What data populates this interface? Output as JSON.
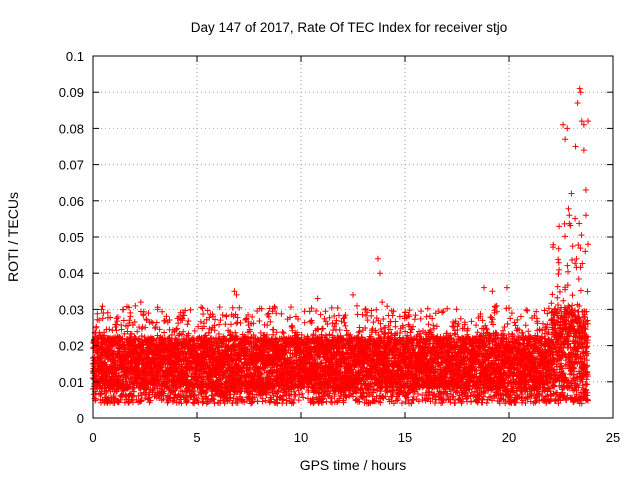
{
  "chart_data": {
    "type": "scatter",
    "title": "Day 147 of 2017, Rate Of TEC Index for receiver stjo",
    "xlabel": "GPS time / hours",
    "ylabel": "ROTI / TECUs",
    "xlim": [
      0,
      25
    ],
    "ylim": [
      0,
      0.1
    ],
    "x_ticks": [
      "0",
      "5",
      "10",
      "15",
      "20",
      "25"
    ],
    "y_ticks": [
      "0",
      "0.01",
      "0.02",
      "0.03",
      "0.04",
      "0.05",
      "0.06",
      "0.07",
      "0.08",
      "0.09",
      "0.1"
    ],
    "grid": true,
    "marker": "+",
    "marker_color": "#ff0000",
    "sampling_interval_hours": 0.0083,
    "x_extent": [
      0.0,
      23.8
    ],
    "series": [
      {
        "name": "ROTI",
        "envelope": [
          {
            "x_start": 0.0,
            "x_end": 22.0,
            "y_min": 0.004,
            "y_typical_low": 0.008,
            "y_typical_high": 0.022,
            "y_max": 0.031
          },
          {
            "x_start": 22.0,
            "x_end": 23.8,
            "y_min": 0.004,
            "y_typical_low": 0.008,
            "y_typical_high": 0.03,
            "y_max": 0.06
          }
        ],
        "notable_points": [
          {
            "x": 2.3,
            "y": 0.032
          },
          {
            "x": 6.8,
            "y": 0.035
          },
          {
            "x": 6.9,
            "y": 0.034
          },
          {
            "x": 10.8,
            "y": 0.033
          },
          {
            "x": 12.5,
            "y": 0.034
          },
          {
            "x": 13.7,
            "y": 0.044
          },
          {
            "x": 13.8,
            "y": 0.04
          },
          {
            "x": 13.9,
            "y": 0.032
          },
          {
            "x": 18.8,
            "y": 0.036
          },
          {
            "x": 19.2,
            "y": 0.035
          },
          {
            "x": 19.9,
            "y": 0.036
          },
          {
            "x": 22.6,
            "y": 0.081
          },
          {
            "x": 22.7,
            "y": 0.077
          },
          {
            "x": 22.8,
            "y": 0.08
          },
          {
            "x": 22.9,
            "y": 0.056
          },
          {
            "x": 23.0,
            "y": 0.062
          },
          {
            "x": 23.2,
            "y": 0.075
          },
          {
            "x": 23.3,
            "y": 0.087
          },
          {
            "x": 23.4,
            "y": 0.091
          },
          {
            "x": 23.45,
            "y": 0.09
          },
          {
            "x": 23.5,
            "y": 0.082
          },
          {
            "x": 23.6,
            "y": 0.081
          },
          {
            "x": 23.6,
            "y": 0.074
          },
          {
            "x": 23.7,
            "y": 0.063
          },
          {
            "x": 23.7,
            "y": 0.056
          },
          {
            "x": 23.8,
            "y": 0.082
          },
          {
            "x": 23.8,
            "y": 0.048
          },
          {
            "x": 23.5,
            "y": 0.004
          }
        ]
      }
    ]
  }
}
